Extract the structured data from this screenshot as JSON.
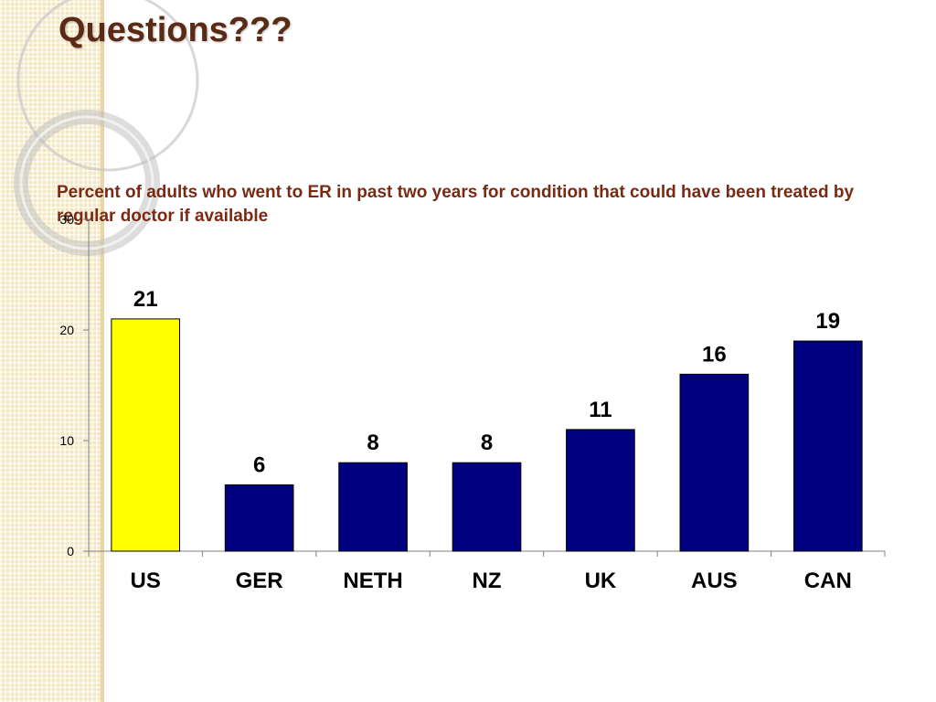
{
  "slide": {
    "title": "Questions???"
  },
  "chart_data": {
    "type": "bar",
    "title": "Percent of adults who went to ER in past two years for condition that could have been treated by regular doctor if available",
    "categories": [
      "US",
      "GER",
      "NETH",
      "NZ",
      "UK",
      "AUS",
      "CAN"
    ],
    "values": [
      21,
      6,
      8,
      8,
      11,
      16,
      19
    ],
    "data_labels": [
      "21",
      "6",
      "8",
      "8",
      "11",
      "16",
      "19"
    ],
    "ylim": [
      0,
      30
    ],
    "yticks": [
      0,
      10,
      20,
      30
    ],
    "ytick_labels": [
      "0",
      "10",
      "20",
      "30"
    ],
    "xlabel": "",
    "ylabel": "",
    "grid": false,
    "legend": "none",
    "colors": {
      "highlight": "#ffff00",
      "default": "#000080",
      "bar_outline": "#000000",
      "axis": "#808080",
      "title_color": "#7a2a14",
      "slide_title_color": "#5a2a14"
    },
    "highlight_category": "US"
  }
}
